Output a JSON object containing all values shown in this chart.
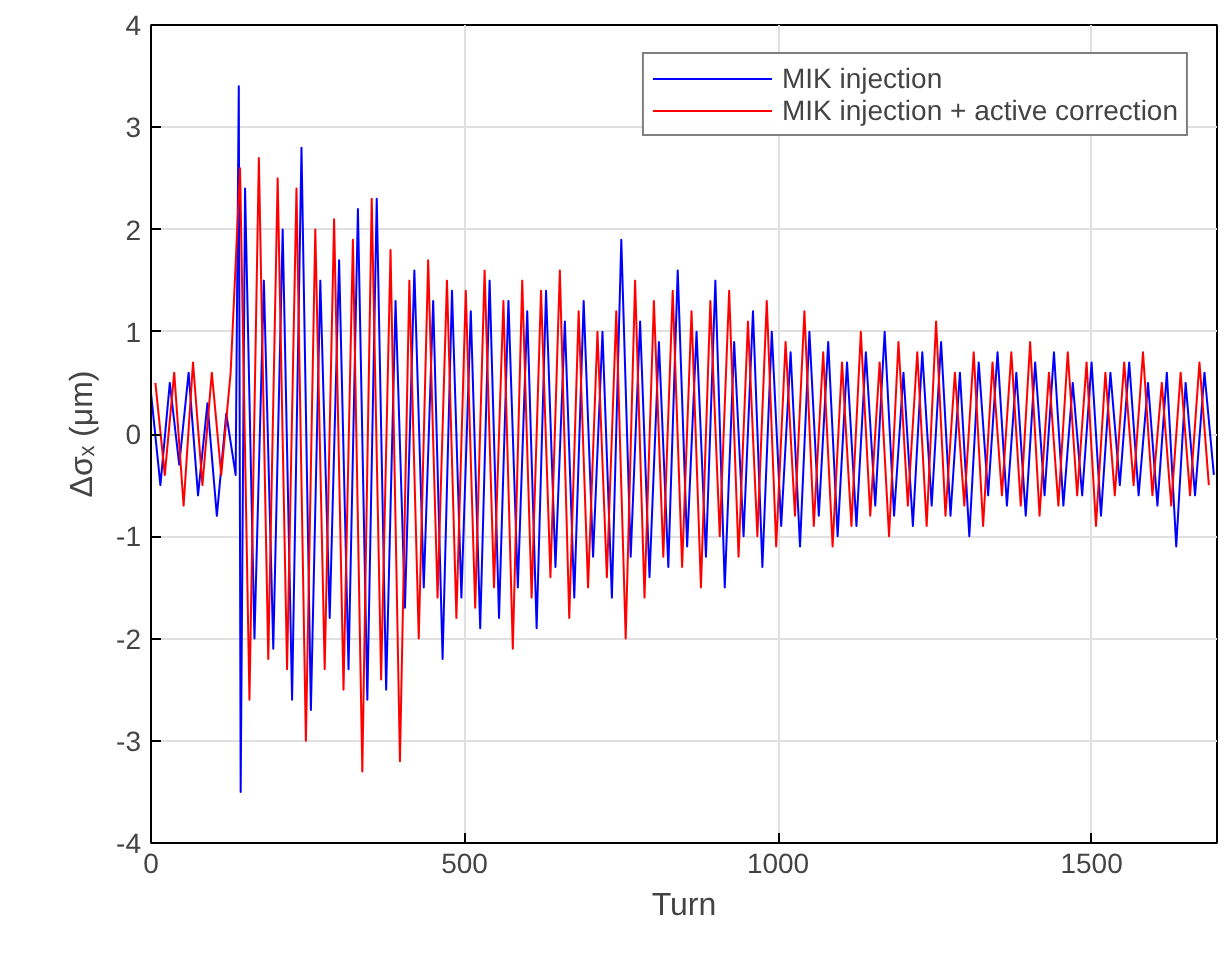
{
  "chart_data": {
    "type": "line",
    "xlabel": "Turn",
    "ylabel": "Δσₓ (μm)",
    "xlim": [
      0,
      1700
    ],
    "ylim": [
      -4,
      4
    ],
    "xticks": [
      0,
      500,
      1000,
      1500
    ],
    "yticks": [
      -4,
      -3,
      -2,
      -1,
      0,
      1,
      2,
      3,
      4
    ],
    "grid": true,
    "legend": "top right",
    "line_style": "solid",
    "marker": "none",
    "series": [
      {
        "name": "MIK injection",
        "color": "#0000ff",
        "x": [
          0,
          15,
          30,
          45,
          60,
          75,
          90,
          105,
          120,
          135,
          140,
          143,
          150,
          165,
          180,
          195,
          210,
          225,
          240,
          255,
          270,
          285,
          300,
          315,
          330,
          345,
          360,
          375,
          390,
          405,
          420,
          435,
          450,
          465,
          480,
          495,
          510,
          525,
          540,
          555,
          570,
          585,
          600,
          615,
          630,
          645,
          660,
          675,
          690,
          705,
          720,
          735,
          750,
          765,
          780,
          795,
          810,
          825,
          840,
          855,
          870,
          885,
          900,
          915,
          930,
          945,
          960,
          975,
          990,
          1005,
          1020,
          1035,
          1050,
          1065,
          1080,
          1095,
          1110,
          1125,
          1140,
          1155,
          1170,
          1185,
          1200,
          1215,
          1230,
          1245,
          1260,
          1275,
          1290,
          1305,
          1320,
          1335,
          1350,
          1365,
          1380,
          1395,
          1410,
          1425,
          1440,
          1455,
          1470,
          1485,
          1500,
          1515,
          1530,
          1545,
          1560,
          1575,
          1590,
          1605,
          1620,
          1635,
          1650,
          1665,
          1680,
          1695
        ],
        "values": [
          0.4,
          -0.5,
          0.5,
          -0.3,
          0.6,
          -0.6,
          0.3,
          -0.8,
          0.2,
          -0.4,
          3.4,
          -3.5,
          2.4,
          -2.0,
          1.5,
          -2.1,
          2.0,
          -2.6,
          2.8,
          -2.7,
          1.5,
          -1.8,
          1.7,
          -2.3,
          2.2,
          -2.6,
          2.3,
          -2.5,
          1.3,
          -1.7,
          1.6,
          -1.5,
          1.3,
          -2.2,
          1.4,
          -1.6,
          1.2,
          -1.9,
          1.5,
          -1.8,
          1.3,
          -1.5,
          1.2,
          -1.9,
          1.4,
          -1.3,
          1.1,
          -1.6,
          1.3,
          -1.2,
          1.0,
          -1.6,
          1.9,
          -1.2,
          1.1,
          -1.4,
          0.9,
          -1.3,
          1.6,
          -1.1,
          1.0,
          -1.2,
          1.5,
          -1.5,
          0.9,
          -1.0,
          1.2,
          -1.3,
          1.0,
          -0.9,
          0.8,
          -1.1,
          1.0,
          -0.8,
          0.9,
          -1.0,
          0.7,
          -0.9,
          0.8,
          -0.7,
          1.0,
          -0.8,
          0.6,
          -0.9,
          0.8,
          -0.7,
          0.9,
          -0.8,
          0.6,
          -1.0,
          0.7,
          -0.6,
          0.8,
          -0.7,
          0.6,
          -0.8,
          0.7,
          -0.6,
          0.8,
          -0.7,
          0.5,
          -0.6,
          0.7,
          -0.8,
          0.6,
          -0.5,
          0.7,
          -0.6,
          0.5,
          -0.7,
          0.6,
          -1.1,
          0.5,
          -0.6,
          0.6,
          -0.4
        ]
      },
      {
        "name": "MIK injection + active correction",
        "color": "#ff0000",
        "x": [
          7,
          22,
          37,
          52,
          67,
          82,
          97,
          112,
          127,
          142,
          157,
          172,
          187,
          202,
          217,
          232,
          247,
          262,
          277,
          292,
          307,
          322,
          337,
          352,
          367,
          382,
          397,
          412,
          427,
          442,
          457,
          472,
          487,
          502,
          517,
          532,
          547,
          562,
          577,
          592,
          607,
          622,
          637,
          652,
          667,
          682,
          697,
          712,
          727,
          742,
          757,
          772,
          787,
          802,
          817,
          832,
          847,
          862,
          877,
          892,
          907,
          922,
          937,
          952,
          967,
          982,
          997,
          1012,
          1027,
          1042,
          1057,
          1072,
          1087,
          1102,
          1117,
          1132,
          1147,
          1162,
          1177,
          1192,
          1207,
          1222,
          1237,
          1252,
          1267,
          1282,
          1297,
          1312,
          1327,
          1342,
          1357,
          1372,
          1387,
          1402,
          1417,
          1432,
          1447,
          1462,
          1477,
          1492,
          1507,
          1522,
          1537,
          1552,
          1567,
          1582,
          1597,
          1612,
          1627,
          1642,
          1657,
          1672,
          1687
        ],
        "values": [
          0.5,
          -0.4,
          0.6,
          -0.7,
          0.7,
          -0.5,
          0.6,
          -0.4,
          0.6,
          2.6,
          -2.6,
          2.7,
          -2.2,
          2.5,
          -2.3,
          2.4,
          -3.0,
          2.0,
          -2.3,
          2.1,
          -2.5,
          1.9,
          -3.3,
          2.3,
          -2.4,
          1.8,
          -3.2,
          1.5,
          -2.0,
          1.7,
          -1.6,
          1.5,
          -1.8,
          1.4,
          -1.7,
          1.6,
          -1.5,
          1.3,
          -2.1,
          1.5,
          -1.6,
          1.4,
          -1.4,
          1.6,
          -1.8,
          1.2,
          -1.5,
          1.0,
          -1.4,
          1.2,
          -2.0,
          1.5,
          -1.6,
          1.3,
          -1.2,
          1.4,
          -1.3,
          1.2,
          -1.5,
          1.3,
          -1.0,
          1.4,
          -1.2,
          1.1,
          -1.0,
          1.3,
          -1.1,
          0.9,
          -0.8,
          1.2,
          -0.9,
          0.8,
          -1.1,
          0.7,
          -0.9,
          1.0,
          -0.8,
          0.7,
          -1.0,
          0.9,
          -0.7,
          0.8,
          -0.9,
          1.1,
          -0.8,
          0.6,
          -0.7,
          0.8,
          -0.9,
          0.7,
          -0.6,
          0.8,
          -0.7,
          0.9,
          -0.8,
          0.6,
          -0.7,
          0.8,
          -0.6,
          0.7,
          -0.9,
          0.6,
          -0.6,
          0.7,
          -0.5,
          0.8,
          -0.6,
          0.5,
          -0.7,
          0.6,
          -0.6,
          0.7,
          -0.5
        ]
      }
    ]
  }
}
